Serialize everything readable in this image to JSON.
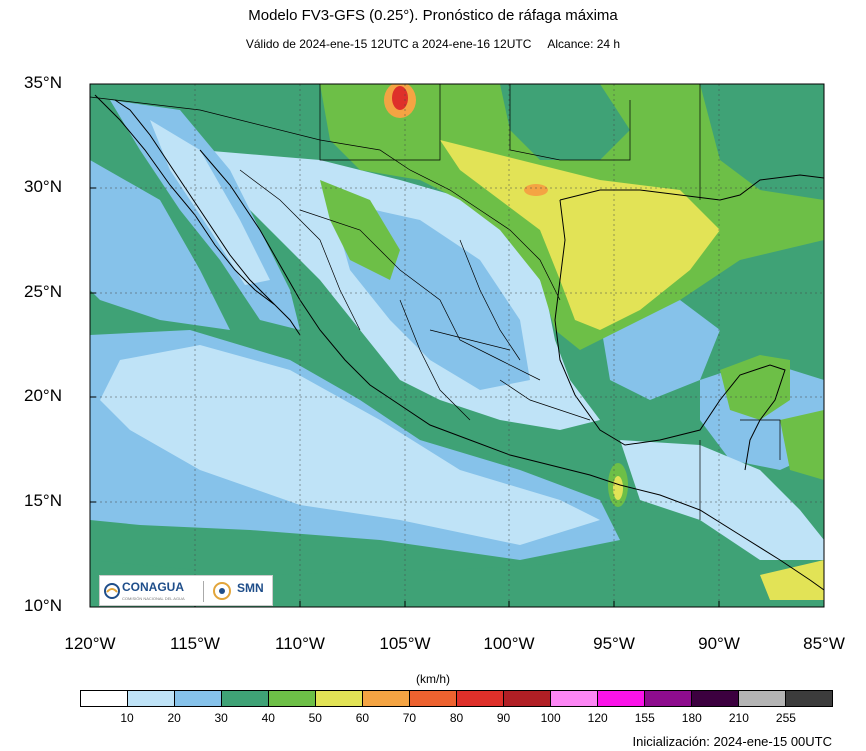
{
  "title": "Modelo FV3-GFS (0.25°). Pronóstico de ráfaga máxima",
  "subtitle_validity": "Válido de 2024-ene-15 12UTC a 2024-ene-16 12UTC",
  "subtitle_range": "Alcance: 24 h",
  "latitude_labels": [
    "35°N",
    "30°N",
    "25°N",
    "20°N",
    "15°N",
    "10°N"
  ],
  "longitude_labels": [
    "120°W",
    "115°W",
    "110°W",
    "105°W",
    "100°W",
    "95°W",
    "90°W",
    "85°W"
  ],
  "logos": {
    "conagua": "CONAGUA",
    "conagua_sub": "COMISIÓN NACIONAL DEL AGUA",
    "smn": "SMN"
  },
  "colorbar": {
    "units": "(km/h)",
    "colors": [
      "#ffffff",
      "#bfe3f7",
      "#86c2ea",
      "#3fa276",
      "#6dbf47",
      "#e2e356",
      "#f4a443",
      "#ed622f",
      "#de302a",
      "#b11f25",
      "#fc86f4",
      "#fb13e9",
      "#8e0c8e",
      "#3c003f",
      "#b4b4b4",
      "#3c3c3c"
    ],
    "ticks": [
      "10",
      "20",
      "30",
      "40",
      "50",
      "60",
      "70",
      "80",
      "90",
      "100",
      "120",
      "155",
      "180",
      "210",
      "255"
    ]
  },
  "initialization": "Inicialización: 2024-ene-15 00UTC"
}
